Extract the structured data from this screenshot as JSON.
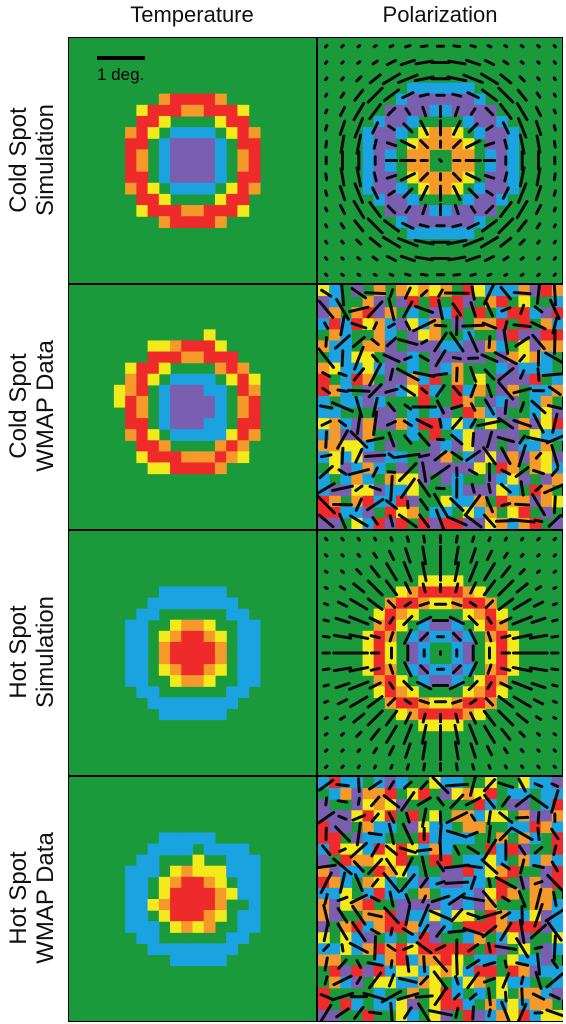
{
  "column_headers": [
    "Temperature",
    "Polarization"
  ],
  "rows": [
    {
      "line1": "Cold Spot",
      "line2": "Simulation",
      "center": "cold",
      "noisy": false
    },
    {
      "line1": "Cold Spot",
      "line2": "WMAP Data",
      "center": "cold",
      "noisy": true
    },
    {
      "line1": "Hot Spot",
      "line2": "Simulation",
      "center": "hot",
      "noisy": false
    },
    {
      "line1": "Hot Spot",
      "line2": "WMAP Data",
      "center": "hot",
      "noisy": true
    }
  ],
  "scale_bar": {
    "label": "1 deg."
  },
  "colors": {
    "background_green": "#1a9a3a",
    "blue": "#1aa3e0",
    "purple": "#7a5fb0",
    "yellow": "#f2ea1a",
    "red": "#ee2a2a",
    "orange": "#f59a2a",
    "stick": "#0a0a0a"
  }
}
